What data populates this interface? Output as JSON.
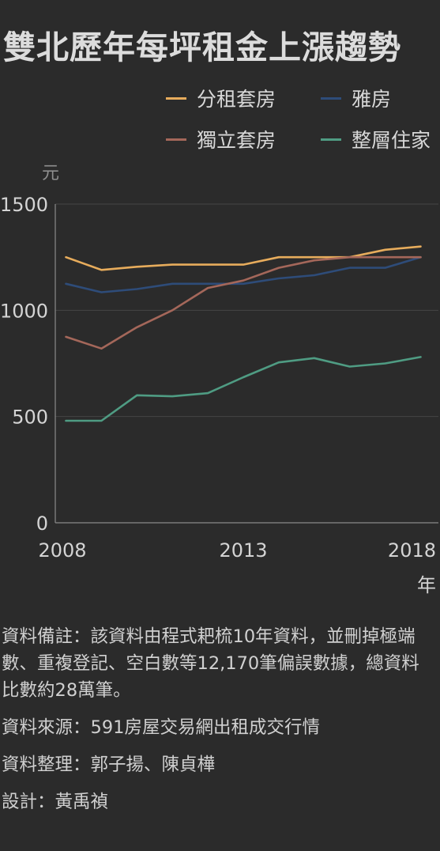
{
  "title": "雙北歷年每坪租金上漲趨勢",
  "legend": [
    {
      "label": "分租套房",
      "color": "#e7ac5c"
    },
    {
      "label": "雅房",
      "color": "#2e4c79"
    },
    {
      "label": "獨立套房",
      "color": "#a4675a"
    },
    {
      "label": "整層住家",
      "color": "#4f9c83"
    }
  ],
  "chart_data": {
    "type": "line",
    "title": "雙北歷年每坪租金上漲趨勢",
    "ylabel": "元",
    "xlabel": "年",
    "x": [
      2008,
      2009,
      2010,
      2011,
      2012,
      2013,
      2014,
      2015,
      2016,
      2017,
      2018
    ],
    "xticks": [
      "2008",
      "2013",
      "2018"
    ],
    "yticks": [
      "0",
      "500",
      "1000",
      "1500"
    ],
    "ylim": [
      0,
      1500
    ],
    "xlim": [
      2007.7,
      2018.5
    ],
    "grid": true,
    "series": [
      {
        "name": "分租套房",
        "color": "#e7ac5c",
        "values": [
          1250,
          1190,
          1205,
          1215,
          1215,
          1215,
          1250,
          1250,
          1250,
          1285,
          1300
        ]
      },
      {
        "name": "雅房",
        "color": "#2e4c79",
        "values": [
          1125,
          1085,
          1100,
          1125,
          1125,
          1125,
          1150,
          1165,
          1200,
          1200,
          1250
        ]
      },
      {
        "name": "獨立套房",
        "color": "#a4675a",
        "values": [
          875,
          820,
          920,
          1000,
          1105,
          1140,
          1200,
          1235,
          1250,
          1250,
          1250
        ]
      },
      {
        "name": "整層住家",
        "color": "#4f9c83",
        "values": [
          480,
          480,
          600,
          595,
          610,
          685,
          755,
          775,
          735,
          750,
          780
        ]
      }
    ]
  },
  "notes": [
    "資料備註：該資料由程式耙梳10年資料，並刪掉極端數、重複登記、空白數等12,170筆偏誤數據，總資料比數約28萬筆。",
    "資料來源：591房屋交易網出租成交行情",
    "資料整理：郭子揚、陳貞樺",
    "設計：黃禹禎"
  ]
}
